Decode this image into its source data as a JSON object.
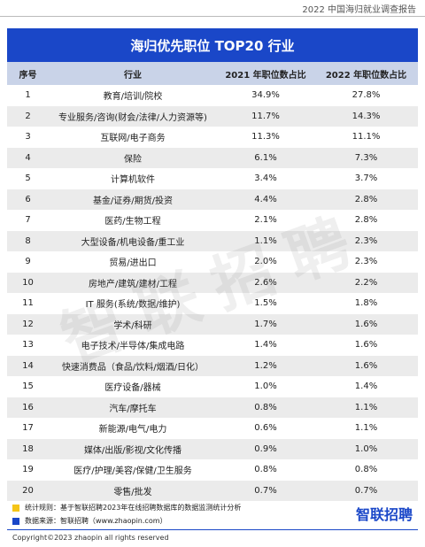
{
  "header": {
    "report": "2022 中国海归就业调查报告"
  },
  "table": {
    "title": "海归优先职位 TOP20 行业",
    "columns": [
      "序号",
      "行业",
      "2021 年职位数占比",
      "2022 年职位数占比"
    ],
    "rows": [
      [
        "1",
        "教育/培训/院校",
        "34.9%",
        "27.8%"
      ],
      [
        "2",
        "专业服务/咨询(财会/法律/人力资源等)",
        "11.7%",
        "14.3%"
      ],
      [
        "3",
        "互联网/电子商务",
        "11.3%",
        "11.1%"
      ],
      [
        "4",
        "保险",
        "6.1%",
        "7.3%"
      ],
      [
        "5",
        "计算机软件",
        "3.4%",
        "3.7%"
      ],
      [
        "6",
        "基金/证券/期货/投资",
        "4.4%",
        "2.8%"
      ],
      [
        "7",
        "医药/生物工程",
        "2.1%",
        "2.8%"
      ],
      [
        "8",
        "大型设备/机电设备/重工业",
        "1.1%",
        "2.3%"
      ],
      [
        "9",
        "贸易/进出口",
        "2.0%",
        "2.3%"
      ],
      [
        "10",
        "房地产/建筑/建材/工程",
        "2.6%",
        "2.2%"
      ],
      [
        "11",
        "IT 服务(系统/数据/维护)",
        "1.5%",
        "1.8%"
      ],
      [
        "12",
        "学术/科研",
        "1.7%",
        "1.6%"
      ],
      [
        "13",
        "电子技术/半导体/集成电路",
        "1.4%",
        "1.6%"
      ],
      [
        "14",
        "快速消费品（食品/饮料/烟酒/日化）",
        "1.2%",
        "1.6%"
      ],
      [
        "15",
        "医疗设备/器械",
        "1.0%",
        "1.4%"
      ],
      [
        "16",
        "汽车/摩托车",
        "0.8%",
        "1.1%"
      ],
      [
        "17",
        "新能源/电气/电力",
        "0.6%",
        "1.1%"
      ],
      [
        "18",
        "媒体/出版/影视/文化传播",
        "0.9%",
        "1.0%"
      ],
      [
        "19",
        "医疗/护理/美容/保健/卫生服务",
        "0.8%",
        "0.8%"
      ],
      [
        "20",
        "零售/批发",
        "0.7%",
        "0.7%"
      ]
    ]
  },
  "watermark": "智联招聘",
  "notes": [
    "统计规则：基于智联招聘2023年在线招聘数据库的数据监测统计分析",
    "数据来源：智联招聘（www.zhaopin.com）"
  ],
  "logo": "智联招聘",
  "footer": {
    "copyright": "Copyright©2023 zhaopin all rights reserved"
  }
}
